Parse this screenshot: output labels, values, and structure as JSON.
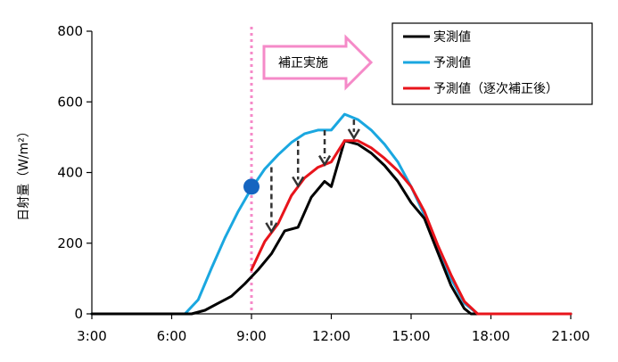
{
  "chart_data": {
    "type": "line",
    "title": "",
    "xlabel": "",
    "ylabel": "日射量（W/m²）",
    "ylim": [
      0,
      800
    ],
    "yticks": [
      0,
      200,
      400,
      600,
      800
    ],
    "xlim": [
      3,
      21
    ],
    "xticks": [
      {
        "value": 3,
        "label": "3:00"
      },
      {
        "value": 6,
        "label": "6:00"
      },
      {
        "value": 9,
        "label": "9:00"
      },
      {
        "value": 12,
        "label": "12:00"
      },
      {
        "value": 15,
        "label": "15:00"
      },
      {
        "value": 18,
        "label": "18:00"
      },
      {
        "value": 21,
        "label": "21:00"
      }
    ],
    "grid": false,
    "legend_position": "top-right",
    "series": [
      {
        "name": "実測値",
        "color": "#000000",
        "points": [
          [
            3,
            0
          ],
          [
            6,
            0
          ],
          [
            6.75,
            0
          ],
          [
            7.25,
            10
          ],
          [
            7.75,
            30
          ],
          [
            8.25,
            50
          ],
          [
            8.75,
            85
          ],
          [
            9.25,
            125
          ],
          [
            9.75,
            170
          ],
          [
            10.25,
            235
          ],
          [
            10.75,
            245
          ],
          [
            11.25,
            330
          ],
          [
            11.75,
            375
          ],
          [
            12.0,
            360
          ],
          [
            12.5,
            490
          ],
          [
            13.0,
            480
          ],
          [
            13.5,
            455
          ],
          [
            14.0,
            420
          ],
          [
            14.5,
            375
          ],
          [
            15.0,
            315
          ],
          [
            15.5,
            270
          ],
          [
            16.0,
            175
          ],
          [
            16.5,
            80
          ],
          [
            17.0,
            15
          ],
          [
            17.25,
            0
          ],
          [
            18,
            0
          ],
          [
            21,
            0
          ]
        ]
      },
      {
        "name": "予測値",
        "color": "#1aa7e0",
        "points": [
          [
            3,
            0
          ],
          [
            6,
            0
          ],
          [
            6.5,
            0
          ],
          [
            7.0,
            40
          ],
          [
            7.5,
            130
          ],
          [
            8.0,
            215
          ],
          [
            8.5,
            290
          ],
          [
            9.0,
            355
          ],
          [
            9.5,
            410
          ],
          [
            10.0,
            450
          ],
          [
            10.5,
            485
          ],
          [
            11.0,
            510
          ],
          [
            11.5,
            520
          ],
          [
            12.0,
            520
          ],
          [
            12.5,
            565
          ],
          [
            13.0,
            550
          ],
          [
            13.5,
            520
          ],
          [
            14.0,
            480
          ],
          [
            14.5,
            430
          ],
          [
            15.0,
            360
          ],
          [
            15.5,
            280
          ],
          [
            16.0,
            190
          ],
          [
            16.5,
            100
          ],
          [
            17.0,
            30
          ],
          [
            17.5,
            0
          ],
          [
            18,
            0
          ],
          [
            21,
            0
          ]
        ]
      },
      {
        "name": "予測値（逐次補正後）",
        "color": "#e8141b",
        "points": [
          [
            9.0,
            125
          ],
          [
            9.5,
            205
          ],
          [
            10.0,
            255
          ],
          [
            10.5,
            335
          ],
          [
            11.0,
            385
          ],
          [
            11.5,
            415
          ],
          [
            12.0,
            430
          ],
          [
            12.5,
            490
          ],
          [
            13.0,
            490
          ],
          [
            13.5,
            470
          ],
          [
            14.0,
            440
          ],
          [
            14.5,
            405
          ],
          [
            15.0,
            360
          ],
          [
            15.5,
            290
          ],
          [
            16.0,
            195
          ],
          [
            16.5,
            110
          ],
          [
            17.0,
            35
          ],
          [
            17.5,
            0
          ],
          [
            18,
            0
          ],
          [
            21,
            0
          ]
        ]
      }
    ],
    "markers": [
      {
        "x": 9.0,
        "y": 360,
        "color": "#1565c0"
      }
    ],
    "vline": {
      "x": 9.0,
      "color": "#f58ac8"
    },
    "correction_arrows": [
      {
        "x": 9.75,
        "from": 415,
        "to": 230
      },
      {
        "x": 10.75,
        "from": 490,
        "to": 360
      },
      {
        "x": 11.75,
        "from": 520,
        "to": 420
      },
      {
        "x": 12.85,
        "from": 550,
        "to": 495
      }
    ],
    "annotation": {
      "text": "補正実施",
      "arrow_color": "#f58ac8"
    }
  }
}
